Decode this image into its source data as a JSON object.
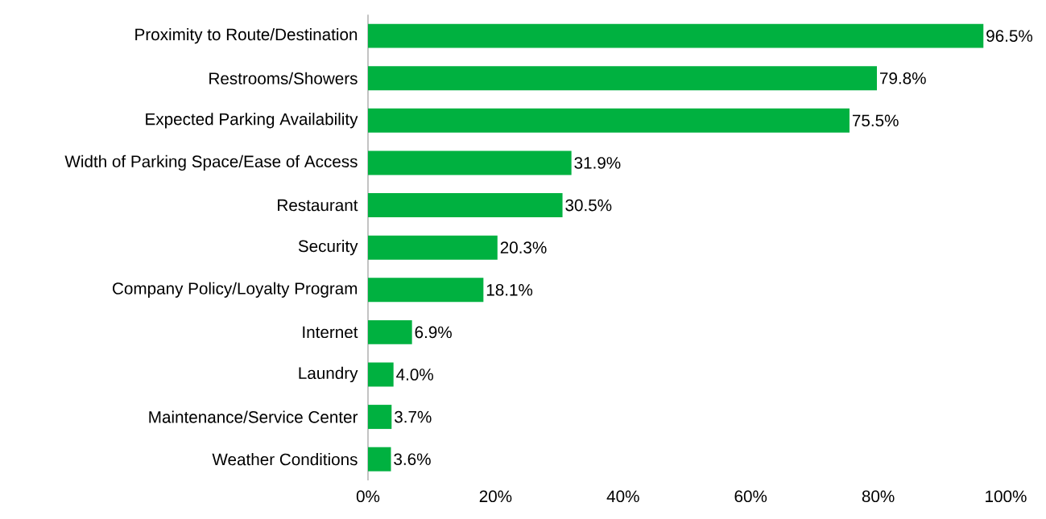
{
  "chart_data": {
    "type": "bar",
    "orientation": "horizontal",
    "color": "#00b140",
    "categories": [
      "Proximity to Route/Destination",
      "Restrooms/Showers",
      "Expected Parking Availability",
      "Width of Parking Space/Ease of Access",
      "Restaurant",
      "Security",
      "Company Policy/Loyalty Program",
      "Internet",
      "Laundry",
      "Maintenance/Service Center",
      "Weather Conditions"
    ],
    "values": [
      96.5,
      79.8,
      75.5,
      31.9,
      30.5,
      20.3,
      18.1,
      6.9,
      4.0,
      3.7,
      3.6
    ],
    "value_labels": [
      "96.5%",
      "79.8%",
      "75.5%",
      "31.9%",
      "30.5%",
      "20.3%",
      "18.1%",
      "6.9%",
      "4.0%",
      "3.7%",
      "3.6%"
    ],
    "xlim": [
      0,
      100
    ],
    "xticks": [
      {
        "value": 0,
        "label": "0%"
      },
      {
        "value": 20,
        "label": "20%"
      },
      {
        "value": 40,
        "label": "40%"
      },
      {
        "value": 60,
        "label": "60%"
      },
      {
        "value": 80,
        "label": "80%"
      },
      {
        "value": 100,
        "label": "100%"
      }
    ]
  }
}
